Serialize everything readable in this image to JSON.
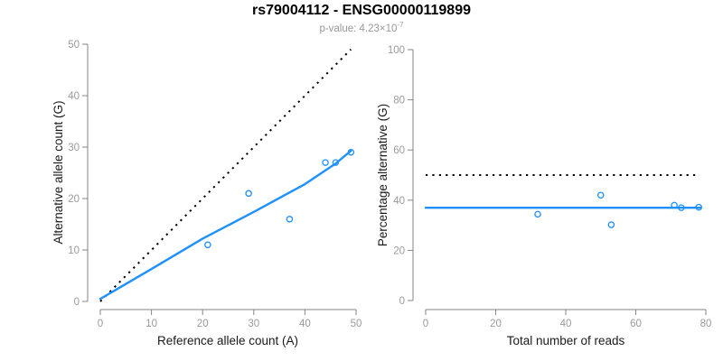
{
  "header": {
    "title": "rs79004112 - ENSG00000119899",
    "subtitle_label": "p-value: 4.23×10",
    "subtitle_exponent": "-7"
  },
  "colors": {
    "accent_blue": "#1E90FF",
    "dotted_black": "#000000",
    "axis_gray": "#858585",
    "tick_label_gray": "#9a9a9a",
    "label_black": "#1a1a1a"
  },
  "chart_data": [
    {
      "id": "allele-counts-panel",
      "type": "scatter",
      "xlabel": "Reference allele count (A)",
      "ylabel": "Alternative allele count (G)",
      "xlim": [
        0,
        50
      ],
      "ylim": [
        0,
        50
      ],
      "xticks": [
        0,
        10,
        20,
        30,
        40,
        50
      ],
      "yticks": [
        0,
        10,
        20,
        30,
        40,
        50
      ],
      "grid": false,
      "legend": null,
      "points": [
        [
          21,
          11
        ],
        [
          29,
          21
        ],
        [
          37,
          16
        ],
        [
          44,
          27
        ],
        [
          46,
          27
        ],
        [
          49,
          29
        ]
      ],
      "identity_line": {
        "style": "dotted",
        "color": "#000000",
        "points": [
          [
            0,
            0
          ],
          [
            49,
            49
          ]
        ]
      },
      "fit_line": {
        "style": "solid",
        "color": "#1E90FF",
        "points": [
          [
            0,
            0.5
          ],
          [
            10,
            6.3
          ],
          [
            20,
            12.2
          ],
          [
            30,
            17.4
          ],
          [
            40,
            22.8
          ],
          [
            46,
            26.8
          ],
          [
            49,
            29.3
          ]
        ]
      }
    },
    {
      "id": "percentage-alternative-panel",
      "type": "scatter",
      "xlabel": "Total number of reads",
      "ylabel": "Percentage alternative (G)",
      "xlim": [
        0,
        80
      ],
      "ylim": [
        0,
        100
      ],
      "xticks": [
        0,
        20,
        40,
        60,
        80
      ],
      "yticks": [
        0,
        20,
        40,
        60,
        80,
        100
      ],
      "grid": false,
      "legend": null,
      "points": [
        [
          32,
          34.4
        ],
        [
          50,
          42
        ],
        [
          53,
          30.2
        ],
        [
          71,
          38
        ],
        [
          73,
          37
        ],
        [
          78,
          37.2
        ]
      ],
      "identity_line": {
        "style": "dotted",
        "color": "#000000",
        "points": [
          [
            0,
            50
          ],
          [
            77,
            50
          ]
        ]
      },
      "fit_line": {
        "style": "solid",
        "color": "#1E90FF",
        "points": [
          [
            0,
            37
          ],
          [
            78.5,
            37
          ]
        ]
      }
    }
  ]
}
